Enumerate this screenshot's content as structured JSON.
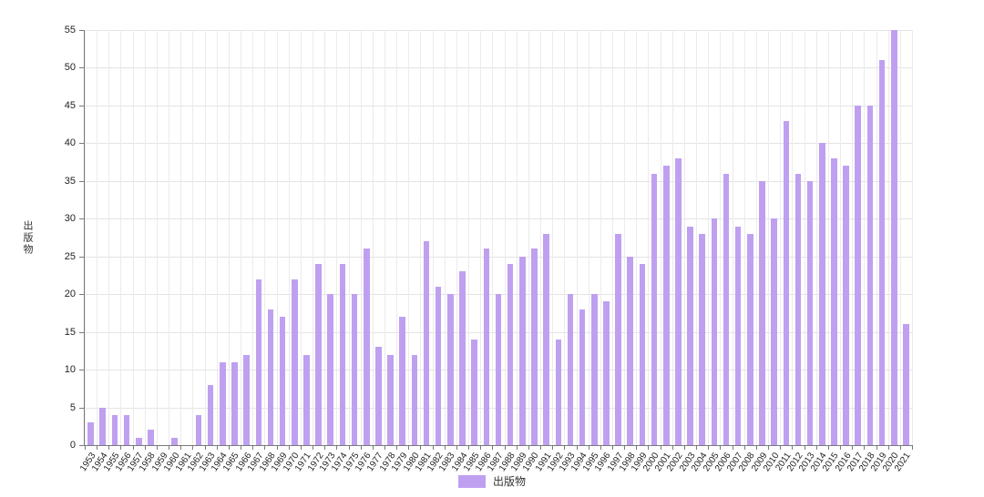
{
  "chart_data": {
    "type": "bar",
    "title": "",
    "xlabel": "",
    "ylabel": "出版物",
    "legend": "出版物",
    "ylim": [
      0,
      55
    ],
    "ytick_step": 5,
    "grid": true,
    "legend_position": "bottom-center",
    "bar_color": "#bfa0f0",
    "categories": [
      "1953",
      "1954",
      "1955",
      "1956",
      "1957",
      "1958",
      "1959",
      "1960",
      "1961",
      "1962",
      "1963",
      "1964",
      "1965",
      "1966",
      "1967",
      "1968",
      "1969",
      "1970",
      "1971",
      "1972",
      "1973",
      "1974",
      "1975",
      "1976",
      "1977",
      "1978",
      "1979",
      "1980",
      "1981",
      "1982",
      "1983",
      "1984",
      "1985",
      "1986",
      "1987",
      "1988",
      "1989",
      "1990",
      "1991",
      "1992",
      "1993",
      "1994",
      "1995",
      "1996",
      "1997",
      "1998",
      "1999",
      "2000",
      "2001",
      "2002",
      "2003",
      "2004",
      "2005",
      "2006",
      "2007",
      "2008",
      "2009",
      "2010",
      "2011",
      "2012",
      "2013",
      "2014",
      "2015",
      "2016",
      "2017",
      "2018",
      "2019",
      "2020",
      "2021"
    ],
    "values": [
      3,
      5,
      4,
      4,
      1,
      2,
      0,
      1,
      0,
      4,
      8,
      11,
      11,
      12,
      22,
      18,
      17,
      22,
      12,
      24,
      20,
      24,
      20,
      26,
      13,
      12,
      17,
      12,
      27,
      21,
      20,
      23,
      14,
      26,
      20,
      24,
      25,
      26,
      28,
      14,
      20,
      18,
      20,
      19,
      28,
      25,
      24,
      36,
      37,
      38,
      29,
      28,
      30,
      36,
      29,
      28,
      35,
      30,
      43,
      36,
      35,
      40,
      38,
      37,
      45,
      45,
      51,
      55,
      16
    ]
  }
}
